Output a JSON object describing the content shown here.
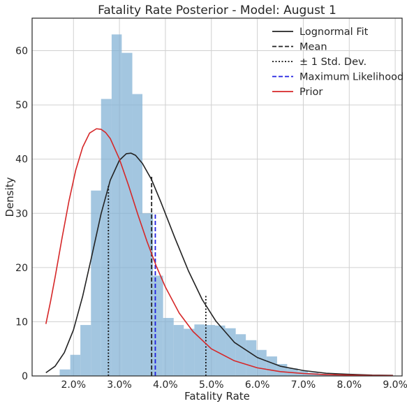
{
  "chart_data": {
    "type": "histogram+line",
    "title": "Fatality Rate Posterior - Model: August 1",
    "xlabel": "Fatality Rate",
    "ylabel": "Density",
    "xlim": [
      0.011,
      0.0915
    ],
    "ylim": [
      0,
      66
    ],
    "x_ticks": [
      0.02,
      0.03,
      0.04,
      0.05,
      0.06,
      0.07,
      0.08,
      0.09
    ],
    "x_tick_labels": [
      "2.0%",
      "3.0%",
      "4.0%",
      "5.0%",
      "6.0%",
      "7.0%",
      "8.0%",
      "9.0%"
    ],
    "y_ticks": [
      0,
      10,
      20,
      30,
      40,
      50,
      60
    ],
    "y_tick_labels": [
      "0",
      "10",
      "20",
      "30",
      "40",
      "50",
      "60"
    ],
    "grid": true,
    "legend_position": "top-right",
    "histogram": {
      "color": "#7fb0d4",
      "bin_edges": [
        0.017,
        0.0193,
        0.0215,
        0.0238,
        0.026,
        0.0283,
        0.0305,
        0.0328,
        0.035,
        0.0373,
        0.0395,
        0.0418,
        0.044,
        0.0463,
        0.0485,
        0.0508,
        0.053,
        0.0553,
        0.0575,
        0.0598,
        0.062,
        0.0643,
        0.0665,
        0.0688,
        0.071,
        0.0733,
        0.0755,
        0.0778,
        0.08,
        0.0823,
        0.0845
      ],
      "densities": [
        1.2,
        3.9,
        9.4,
        34.2,
        51.1,
        63.0,
        59.6,
        52.0,
        30.0,
        18.5,
        10.7,
        9.4,
        8.7,
        9.5,
        9.4,
        9.3,
        8.8,
        7.7,
        6.6,
        4.8,
        3.6,
        2.2,
        1.4,
        0.9,
        0.6,
        0.4,
        0.2,
        0.1,
        0.1,
        0.05
      ]
    },
    "series": [
      {
        "name": "Lognormal Fit",
        "color": "#222222",
        "style": "solid",
        "x": [
          0.014,
          0.016,
          0.018,
          0.02,
          0.022,
          0.024,
          0.026,
          0.028,
          0.03,
          0.0315,
          0.0325,
          0.0335,
          0.035,
          0.037,
          0.039,
          0.042,
          0.045,
          0.048,
          0.051,
          0.055,
          0.06,
          0.065,
          0.07,
          0.075,
          0.08,
          0.085,
          0.0895
        ],
        "y": [
          0.6,
          1.8,
          4.3,
          8.5,
          14.7,
          22.2,
          29.9,
          36.1,
          39.8,
          41.0,
          41.1,
          40.7,
          39.2,
          36.2,
          32.1,
          25.6,
          19.4,
          14.1,
          10.1,
          6.2,
          3.4,
          1.8,
          1.0,
          0.5,
          0.3,
          0.15,
          0.1
        ]
      },
      {
        "name": "Mean",
        "color": "#222222",
        "style": "dashed",
        "x": [
          0.037,
          0.037
        ],
        "y": [
          0,
          36.9
        ]
      },
      {
        "name": "± 1 Std. Dev.",
        "color": "#111111",
        "style": "dotted",
        "lines": [
          {
            "x": [
              0.0276,
              0.0276
            ],
            "y": [
              0,
              35.2
            ]
          },
          {
            "x": [
              0.0488,
              0.0488
            ],
            "y": [
              0,
              14.9
            ]
          }
        ]
      },
      {
        "name": "Maximum Likelihood",
        "color": "#1f1fe0",
        "style": "dashed",
        "x": [
          0.0378,
          0.0378
        ],
        "y": [
          0,
          30.0
        ]
      },
      {
        "name": "Prior",
        "color": "#d62728",
        "style": "solid",
        "x": [
          0.014,
          0.015,
          0.016,
          0.0175,
          0.019,
          0.0205,
          0.022,
          0.0235,
          0.025,
          0.026,
          0.027,
          0.028,
          0.03,
          0.032,
          0.034,
          0.036,
          0.038,
          0.04,
          0.043,
          0.046,
          0.05,
          0.055,
          0.06,
          0.065,
          0.07,
          0.075,
          0.08,
          0.085,
          0.0895
        ],
        "y": [
          9.6,
          13.7,
          18.2,
          25.4,
          32.2,
          38.0,
          42.2,
          44.8,
          45.6,
          45.5,
          44.9,
          43.8,
          40.0,
          35.1,
          29.8,
          24.8,
          20.3,
          16.4,
          11.6,
          8.2,
          5.0,
          2.8,
          1.5,
          0.8,
          0.45,
          0.25,
          0.15,
          0.08,
          0.05
        ]
      }
    ]
  }
}
